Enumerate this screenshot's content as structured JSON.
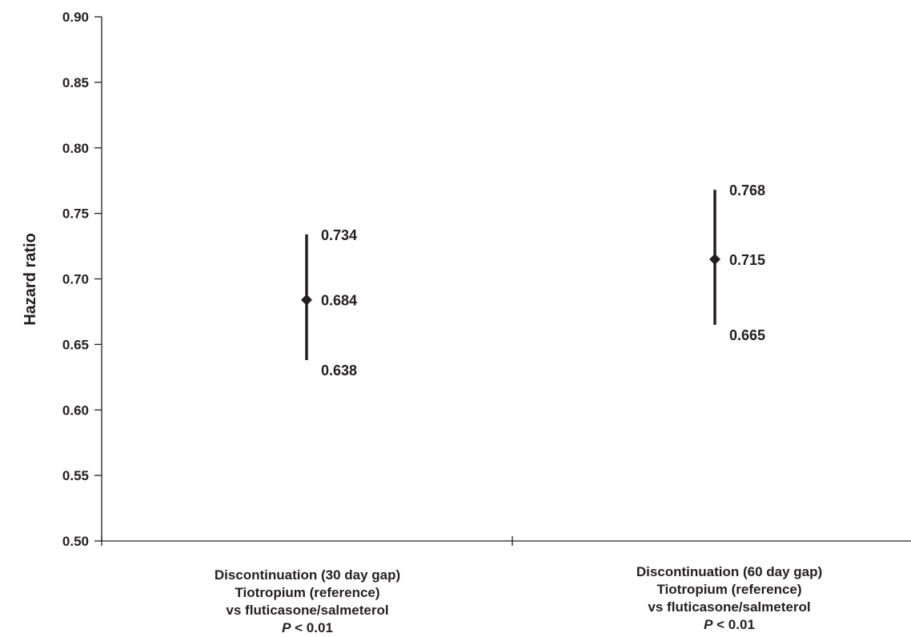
{
  "chart_data": {
    "type": "scatter",
    "ylabel": "Hazard ratio",
    "ylim": [
      0.5,
      0.9
    ],
    "yticks": [
      "0.50",
      "0.55",
      "0.60",
      "0.65",
      "0.70",
      "0.75",
      "0.80",
      "0.85",
      "0.90"
    ],
    "grid": false,
    "categories": [
      {
        "lines": [
          "Discontinuation (30 day gap)",
          "Tiotropium (reference)",
          "vs fluticasone/salmeterol"
        ],
        "p_symbol": "P",
        "p_value": " < 0.01",
        "estimate": 0.684,
        "lower": 0.638,
        "upper": 0.734,
        "estimate_label": "0.684",
        "lower_label": "0.638",
        "upper_label": "0.734"
      },
      {
        "lines": [
          "Discontinuation (60 day gap)",
          "Tiotropium (reference)",
          "vs fluticasone/salmeterol"
        ],
        "p_symbol": "P",
        "p_value": " < 0.01",
        "estimate": 0.715,
        "lower": 0.665,
        "upper": 0.768,
        "estimate_label": "0.715",
        "lower_label": "0.665",
        "upper_label": "0.768"
      }
    ],
    "colors": {
      "ink": "#231f20"
    }
  }
}
